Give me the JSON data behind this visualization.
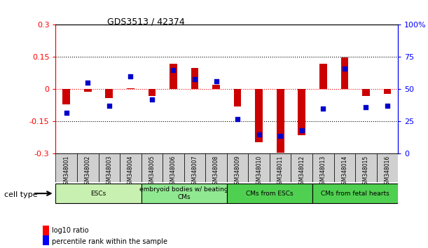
{
  "title": "GDS3513 / 42374",
  "samples": [
    "GSM348001",
    "GSM348002",
    "GSM348003",
    "GSM348004",
    "GSM348005",
    "GSM348006",
    "GSM348007",
    "GSM348008",
    "GSM348009",
    "GSM348010",
    "GSM348011",
    "GSM348012",
    "GSM348013",
    "GSM348014",
    "GSM348015",
    "GSM348016"
  ],
  "log10_ratio": [
    -0.07,
    -0.01,
    -0.04,
    0.005,
    -0.03,
    0.12,
    0.1,
    0.02,
    -0.08,
    -0.245,
    -0.295,
    -0.215,
    0.12,
    0.148,
    -0.03,
    -0.02
  ],
  "percentile_rank": [
    32,
    55,
    37,
    60,
    42,
    65,
    58,
    56,
    27,
    15,
    14,
    18,
    35,
    66,
    36,
    37
  ],
  "cell_type_groups": [
    {
      "label": "ESCs",
      "start": 0,
      "end": 3,
      "color": "#c8f0b0"
    },
    {
      "label": "embryoid bodies w/ beating\nCMs",
      "start": 4,
      "end": 7,
      "color": "#90e890"
    },
    {
      "label": "CMs from ESCs",
      "start": 8,
      "end": 11,
      "color": "#50d050"
    },
    {
      "label": "CMs from fetal hearts",
      "start": 12,
      "end": 15,
      "color": "#50d050"
    }
  ],
  "group_colors": [
    "#c8f0b0",
    "#90e890",
    "#50d050",
    "#50d050"
  ],
  "ylim_left": [
    -0.3,
    0.3
  ],
  "ylim_right": [
    0,
    100
  ],
  "yticks_left": [
    -0.3,
    -0.15,
    0,
    0.15,
    0.3
  ],
  "yticks_right": [
    0,
    25,
    50,
    75,
    100
  ],
  "ytick_right_labels": [
    "0",
    "25",
    "50",
    "75",
    "100%"
  ],
  "bar_color": "#cc0000",
  "dot_color": "#0000cc",
  "cell_type_label": "cell type",
  "legend_log10": "log10 ratio",
  "legend_pct": "percentile rank within the sample"
}
